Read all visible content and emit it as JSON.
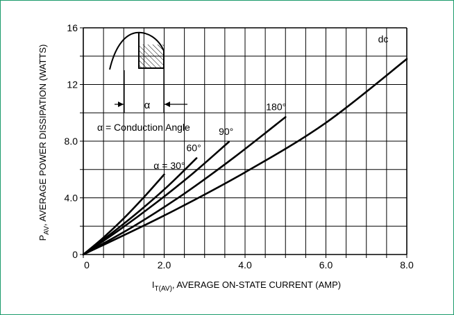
{
  "colors": {
    "frame": "#1a9b6a",
    "grid": "#000000",
    "curve": "#000000"
  },
  "chart_data": {
    "type": "line",
    "title": "",
    "xlabel": {
      "main": "I",
      "sub": "T(AV)",
      "rest": ", AVERAGE ON-STATE CURRENT (AMP)"
    },
    "ylabel": {
      "main": "P",
      "sub": "AV",
      "rest": ", AVERAGE POWER DISSIPATION (WATTS)"
    },
    "xlim": [
      0,
      8.0
    ],
    "ylim": [
      0,
      16
    ],
    "xticks": [
      0,
      2.0,
      4.0,
      6.0,
      8.0
    ],
    "xtick_labels": [
      "0",
      "2.0",
      "4.0",
      "6.0",
      "8.0"
    ],
    "yticks": [
      0,
      4.0,
      8.0,
      12,
      16
    ],
    "ytick_labels": [
      "0",
      "4.0",
      "8.0",
      "12",
      "16"
    ],
    "grid": true,
    "series": [
      {
        "name": "α = 30°",
        "x": [
          0,
          0.5,
          1.0,
          1.5,
          2.0
        ],
        "y": [
          0,
          1.2,
          2.55,
          4.05,
          5.65
        ]
      },
      {
        "name": "60°",
        "x": [
          0,
          0.7,
          1.4,
          2.1,
          2.8
        ],
        "y": [
          0,
          1.5,
          3.1,
          4.85,
          6.8
        ]
      },
      {
        "name": "90°",
        "x": [
          0,
          0.9,
          1.8,
          2.7,
          3.6
        ],
        "y": [
          0,
          1.75,
          3.65,
          5.7,
          7.95
        ]
      },
      {
        "name": "180°",
        "x": [
          0,
          1.25,
          2.5,
          3.75,
          5.0
        ],
        "y": [
          0,
          2.0,
          4.3,
          6.9,
          9.7
        ]
      },
      {
        "name": "dc",
        "x": [
          0,
          2.0,
          4.0,
          6.0,
          8.0
        ],
        "y": [
          0,
          2.75,
          5.8,
          9.3,
          13.8
        ]
      }
    ],
    "annotations": {
      "alpha_symbol": "α",
      "conduction_label": "α = Conduction Angle"
    }
  }
}
